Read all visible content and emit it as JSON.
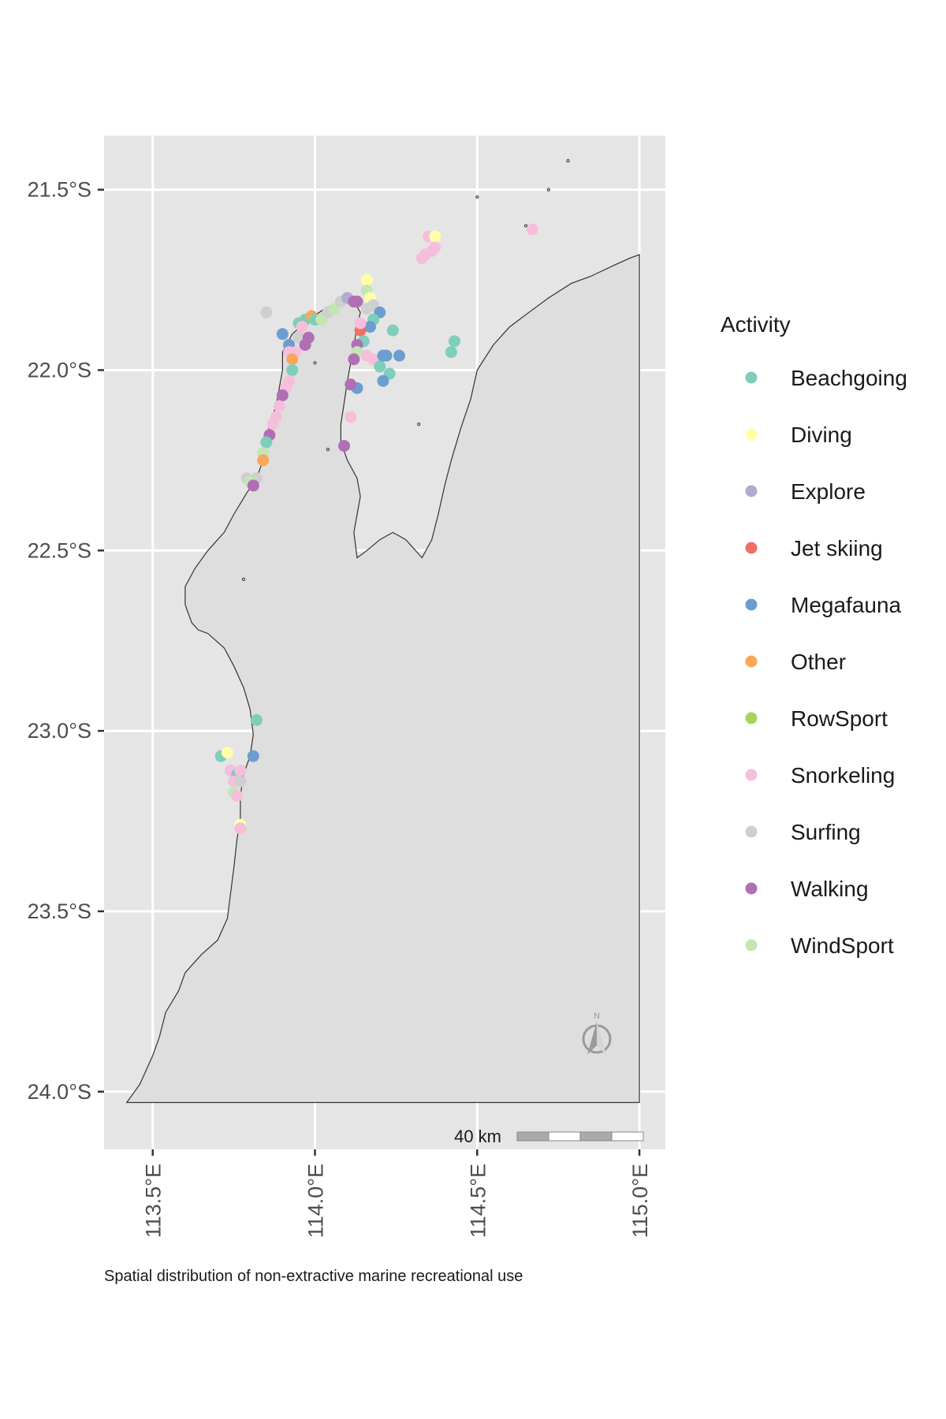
{
  "chart_data": {
    "type": "scatter",
    "subtype": "map",
    "caption": "Spatial distribution of non-extractive marine recreational use",
    "xlim": [
      113.35,
      115.08
    ],
    "ylim": [
      -24.16,
      -21.35
    ],
    "x_ticks": [
      113.5,
      114.0,
      114.5,
      115.0
    ],
    "x_tick_labels": [
      "113.5°E",
      "114.0°E",
      "114.5°E",
      "115.0°E"
    ],
    "y_ticks": [
      -21.5,
      -22.0,
      -22.5,
      -23.0,
      -23.5,
      -24.0
    ],
    "y_tick_labels": [
      "21.5°S",
      "22.0°S",
      "22.5°S",
      "23.0°S",
      "23.5°S",
      "24.0°S"
    ],
    "grid": true,
    "legend_title": "Activity",
    "legend_position": "right",
    "scale_bar_label": "40 km",
    "north_arrow_label": "N",
    "categories": [
      "Beachgoing",
      "Diving",
      "Explore",
      "Jet skiing",
      "Megafauna",
      "Other",
      "RowSport",
      "Snorkeling",
      "Surfing",
      "Walking",
      "WindSport"
    ],
    "colors": {
      "Beachgoing": "#7fcdbb",
      "Diving": "#ffffa8",
      "Explore": "#b3a9d3",
      "Jet skiing": "#ef7065",
      "Megafauna": "#6b9ecf",
      "Other": "#f9a758",
      "RowSport": "#a4d65e",
      "Snorkeling": "#f7bedc",
      "Surfing": "#cfcfcf",
      "Walking": "#b06fb4",
      "WindSport": "#c3e6b4"
    },
    "coastline": [
      [
        113.42,
        -24.03
      ],
      [
        113.46,
        -23.98
      ],
      [
        113.5,
        -23.9
      ],
      [
        113.52,
        -23.85
      ],
      [
        113.54,
        -23.78
      ],
      [
        113.58,
        -23.72
      ],
      [
        113.6,
        -23.67
      ],
      [
        113.65,
        -23.62
      ],
      [
        113.7,
        -23.58
      ],
      [
        113.73,
        -23.52
      ],
      [
        113.74,
        -23.45
      ],
      [
        113.75,
        -23.38
      ],
      [
        113.76,
        -23.3
      ],
      [
        113.77,
        -23.24
      ],
      [
        113.77,
        -23.18
      ],
      [
        113.78,
        -23.12
      ],
      [
        113.8,
        -23.07
      ],
      [
        113.81,
        -23.01
      ],
      [
        113.8,
        -22.94
      ],
      [
        113.78,
        -22.88
      ],
      [
        113.75,
        -22.82
      ],
      [
        113.72,
        -22.77
      ],
      [
        113.67,
        -22.73
      ],
      [
        113.64,
        -22.72
      ],
      [
        113.62,
        -22.7
      ],
      [
        113.6,
        -22.65
      ],
      [
        113.6,
        -22.6
      ],
      [
        113.63,
        -22.55
      ],
      [
        113.67,
        -22.5
      ],
      [
        113.72,
        -22.45
      ],
      [
        113.75,
        -22.4
      ],
      [
        113.79,
        -22.34
      ],
      [
        113.82,
        -22.3
      ],
      [
        113.84,
        -22.25
      ],
      [
        113.85,
        -22.2
      ],
      [
        113.86,
        -22.15
      ],
      [
        113.88,
        -22.1
      ],
      [
        113.89,
        -22.05
      ],
      [
        113.9,
        -22.0
      ],
      [
        113.9,
        -21.95
      ],
      [
        113.93,
        -21.9
      ],
      [
        113.98,
        -21.86
      ],
      [
        114.03,
        -21.83
      ],
      [
        114.08,
        -21.81
      ],
      [
        114.12,
        -21.81
      ],
      [
        114.14,
        -21.84
      ],
      [
        114.13,
        -21.88
      ],
      [
        114.12,
        -21.93
      ],
      [
        114.11,
        -21.98
      ],
      [
        114.1,
        -22.03
      ],
      [
        114.09,
        -22.09
      ],
      [
        114.08,
        -22.15
      ],
      [
        114.08,
        -22.2
      ],
      [
        114.1,
        -22.25
      ],
      [
        114.13,
        -22.3
      ],
      [
        114.14,
        -22.35
      ],
      [
        114.13,
        -22.4
      ],
      [
        114.12,
        -22.45
      ],
      [
        114.13,
        -22.52
      ],
      [
        114.16,
        -22.5
      ],
      [
        114.2,
        -22.47
      ],
      [
        114.24,
        -22.45
      ],
      [
        114.28,
        -22.47
      ],
      [
        114.33,
        -22.52
      ],
      [
        114.36,
        -22.47
      ],
      [
        114.38,
        -22.4
      ],
      [
        114.4,
        -22.32
      ],
      [
        114.42,
        -22.25
      ],
      [
        114.45,
        -22.16
      ],
      [
        114.48,
        -22.08
      ],
      [
        114.5,
        -22.0
      ],
      [
        114.55,
        -21.93
      ],
      [
        114.6,
        -21.88
      ],
      [
        114.66,
        -21.84
      ],
      [
        114.72,
        -21.8
      ],
      [
        114.79,
        -21.76
      ],
      [
        114.85,
        -21.74
      ],
      [
        114.92,
        -21.71
      ],
      [
        114.97,
        -21.69
      ],
      [
        115.0,
        -21.68
      ],
      [
        115.0,
        -24.03
      ]
    ],
    "islands": [
      [
        114.0,
        -21.98
      ],
      [
        114.04,
        -22.22
      ],
      [
        113.78,
        -22.58
      ],
      [
        114.32,
        -22.15
      ],
      [
        114.5,
        -21.52
      ],
      [
        114.65,
        -21.6
      ],
      [
        114.72,
        -21.5
      ],
      [
        114.78,
        -21.42
      ]
    ],
    "points": [
      {
        "x": 113.85,
        "y": -21.84,
        "activity": "Surfing"
      },
      {
        "x": 113.9,
        "y": -21.9,
        "activity": "Megafauna"
      },
      {
        "x": 113.92,
        "y": -21.93,
        "activity": "Megafauna"
      },
      {
        "x": 113.95,
        "y": -21.87,
        "activity": "Beachgoing"
      },
      {
        "x": 113.97,
        "y": -21.86,
        "activity": "Beachgoing"
      },
      {
        "x": 113.99,
        "y": -21.85,
        "activity": "Other"
      },
      {
        "x": 114.0,
        "y": -21.86,
        "activity": "Beachgoing"
      },
      {
        "x": 114.02,
        "y": -21.86,
        "activity": "WindSport"
      },
      {
        "x": 114.04,
        "y": -21.84,
        "activity": "Surfing"
      },
      {
        "x": 114.06,
        "y": -21.83,
        "activity": "WindSport"
      },
      {
        "x": 114.08,
        "y": -21.81,
        "activity": "Surfing"
      },
      {
        "x": 114.1,
        "y": -21.8,
        "activity": "Explore"
      },
      {
        "x": 114.12,
        "y": -21.81,
        "activity": "Walking"
      },
      {
        "x": 114.13,
        "y": -21.81,
        "activity": "Walking"
      },
      {
        "x": 114.16,
        "y": -21.75,
        "activity": "Diving"
      },
      {
        "x": 114.16,
        "y": -21.78,
        "activity": "WindSport"
      },
      {
        "x": 114.17,
        "y": -21.8,
        "activity": "Diving"
      },
      {
        "x": 114.16,
        "y": -21.83,
        "activity": "Surfing"
      },
      {
        "x": 114.18,
        "y": -21.82,
        "activity": "Surfing"
      },
      {
        "x": 114.2,
        "y": -21.84,
        "activity": "Megafauna"
      },
      {
        "x": 114.18,
        "y": -21.86,
        "activity": "Beachgoing"
      },
      {
        "x": 114.17,
        "y": -21.88,
        "activity": "Megafauna"
      },
      {
        "x": 114.14,
        "y": -21.89,
        "activity": "Jet skiing"
      },
      {
        "x": 114.14,
        "y": -21.87,
        "activity": "Snorkeling"
      },
      {
        "x": 114.24,
        "y": -21.89,
        "activity": "Beachgoing"
      },
      {
        "x": 114.15,
        "y": -21.92,
        "activity": "Beachgoing"
      },
      {
        "x": 114.13,
        "y": -21.93,
        "activity": "Walking"
      },
      {
        "x": 114.13,
        "y": -21.95,
        "activity": "WindSport"
      },
      {
        "x": 114.12,
        "y": -21.97,
        "activity": "Walking"
      },
      {
        "x": 114.16,
        "y": -21.96,
        "activity": "Snorkeling"
      },
      {
        "x": 114.18,
        "y": -21.97,
        "activity": "Snorkeling"
      },
      {
        "x": 114.2,
        "y": -21.99,
        "activity": "Beachgoing"
      },
      {
        "x": 114.21,
        "y": -21.96,
        "activity": "Megafauna"
      },
      {
        "x": 114.22,
        "y": -21.96,
        "activity": "Megafauna"
      },
      {
        "x": 114.26,
        "y": -21.96,
        "activity": "Megafauna"
      },
      {
        "x": 114.23,
        "y": -22.01,
        "activity": "Beachgoing"
      },
      {
        "x": 114.21,
        "y": -22.03,
        "activity": "Megafauna"
      },
      {
        "x": 114.13,
        "y": -22.05,
        "activity": "Megafauna"
      },
      {
        "x": 114.11,
        "y": -22.04,
        "activity": "Walking"
      },
      {
        "x": 114.11,
        "y": -22.13,
        "activity": "Snorkeling"
      },
      {
        "x": 114.09,
        "y": -22.21,
        "activity": "Walking"
      },
      {
        "x": 114.42,
        "y": -21.95,
        "activity": "Beachgoing"
      },
      {
        "x": 114.43,
        "y": -21.92,
        "activity": "Beachgoing"
      },
      {
        "x": 114.34,
        "y": -21.68,
        "activity": "Snorkeling"
      },
      {
        "x": 114.36,
        "y": -21.67,
        "activity": "Snorkeling"
      },
      {
        "x": 114.35,
        "y": -21.63,
        "activity": "Snorkeling"
      },
      {
        "x": 114.37,
        "y": -21.63,
        "activity": "Diving"
      },
      {
        "x": 114.33,
        "y": -21.69,
        "activity": "Snorkeling"
      },
      {
        "x": 114.37,
        "y": -21.66,
        "activity": "Snorkeling"
      },
      {
        "x": 114.67,
        "y": -21.61,
        "activity": "Snorkeling"
      },
      {
        "x": 113.95,
        "y": -21.91,
        "activity": "Surfing"
      },
      {
        "x": 113.96,
        "y": -21.88,
        "activity": "Snorkeling"
      },
      {
        "x": 113.98,
        "y": -21.91,
        "activity": "Walking"
      },
      {
        "x": 113.97,
        "y": -21.93,
        "activity": "Walking"
      },
      {
        "x": 113.94,
        "y": -21.95,
        "activity": "Snorkeling"
      },
      {
        "x": 113.92,
        "y": -21.95,
        "activity": "Snorkeling"
      },
      {
        "x": 113.93,
        "y": -21.97,
        "activity": "Other"
      },
      {
        "x": 113.93,
        "y": -22.0,
        "activity": "Beachgoing"
      },
      {
        "x": 113.92,
        "y": -22.03,
        "activity": "Snorkeling"
      },
      {
        "x": 113.91,
        "y": -22.05,
        "activity": "Snorkeling"
      },
      {
        "x": 113.9,
        "y": -22.07,
        "activity": "Walking"
      },
      {
        "x": 113.89,
        "y": -22.1,
        "activity": "Snorkeling"
      },
      {
        "x": 113.88,
        "y": -22.13,
        "activity": "Snorkeling"
      },
      {
        "x": 113.87,
        "y": -22.15,
        "activity": "Snorkeling"
      },
      {
        "x": 113.86,
        "y": -22.18,
        "activity": "Walking"
      },
      {
        "x": 113.85,
        "y": -22.2,
        "activity": "Beachgoing"
      },
      {
        "x": 113.84,
        "y": -22.23,
        "activity": "WindSport"
      },
      {
        "x": 113.84,
        "y": -22.25,
        "activity": "Other"
      },
      {
        "x": 113.82,
        "y": -22.3,
        "activity": "Surfing"
      },
      {
        "x": 113.79,
        "y": -22.3,
        "activity": "Surfing"
      },
      {
        "x": 113.8,
        "y": -22.31,
        "activity": "WindSport"
      },
      {
        "x": 113.81,
        "y": -22.32,
        "activity": "Walking"
      },
      {
        "x": 113.82,
        "y": -22.97,
        "activity": "Beachgoing"
      },
      {
        "x": 113.81,
        "y": -23.07,
        "activity": "Megafauna"
      },
      {
        "x": 113.71,
        "y": -23.07,
        "activity": "Beachgoing"
      },
      {
        "x": 113.73,
        "y": -23.06,
        "activity": "Diving"
      },
      {
        "x": 113.74,
        "y": -23.11,
        "activity": "Snorkeling"
      },
      {
        "x": 113.76,
        "y": -23.12,
        "activity": "Beachgoing"
      },
      {
        "x": 113.77,
        "y": -23.11,
        "activity": "Snorkeling"
      },
      {
        "x": 113.75,
        "y": -23.14,
        "activity": "Snorkeling"
      },
      {
        "x": 113.77,
        "y": -23.14,
        "activity": "Surfing"
      },
      {
        "x": 113.75,
        "y": -23.17,
        "activity": "WindSport"
      },
      {
        "x": 113.76,
        "y": -23.18,
        "activity": "Snorkeling"
      },
      {
        "x": 113.77,
        "y": -23.26,
        "activity": "Diving"
      },
      {
        "x": 113.77,
        "y": -23.27,
        "activity": "Snorkeling"
      }
    ]
  }
}
